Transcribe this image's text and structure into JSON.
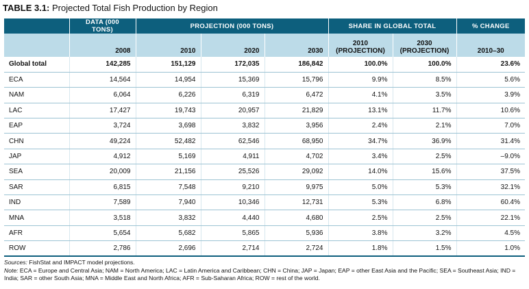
{
  "title": {
    "number": "TABLE 3.1:",
    "text": "Projected Total Fish Production by Region"
  },
  "header": {
    "group_data": "DATA (000 TONS)",
    "group_projection": "PROJECTION (000 TONS)",
    "group_share": "SHARE IN GLOBAL TOTAL",
    "group_change": "% CHANGE",
    "col_2008": "2008",
    "col_2010": "2010",
    "col_2020": "2020",
    "col_2030": "2030",
    "share_2010_year": "2010",
    "share_2010_sub": "(PROJECTION)",
    "share_2030_year": "2030",
    "share_2030_sub": "(PROJECTION)",
    "change_range": "2010–30"
  },
  "rows": [
    {
      "region": "Global total",
      "d2008": "142,285",
      "p2010": "151,129",
      "p2020": "172,035",
      "p2030": "186,842",
      "s2010": "100.0%",
      "s2030": "100.0%",
      "change": "23.6%"
    },
    {
      "region": "ECA",
      "d2008": "14,564",
      "p2010": "14,954",
      "p2020": "15,369",
      "p2030": "15,796",
      "s2010": "9.9%",
      "s2030": "8.5%",
      "change": "5.6%"
    },
    {
      "region": "NAM",
      "d2008": "6,064",
      "p2010": "6,226",
      "p2020": "6,319",
      "p2030": "6,472",
      "s2010": "4.1%",
      "s2030": "3.5%",
      "change": "3.9%"
    },
    {
      "region": "LAC",
      "d2008": "17,427",
      "p2010": "19,743",
      "p2020": "20,957",
      "p2030": "21,829",
      "s2010": "13.1%",
      "s2030": "11.7%",
      "change": "10.6%"
    },
    {
      "region": "EAP",
      "d2008": "3,724",
      "p2010": "3,698",
      "p2020": "3,832",
      "p2030": "3,956",
      "s2010": "2.4%",
      "s2030": "2.1%",
      "change": "7.0%"
    },
    {
      "region": "CHN",
      "d2008": "49,224",
      "p2010": "52,482",
      "p2020": "62,546",
      "p2030": "68,950",
      "s2010": "34.7%",
      "s2030": "36.9%",
      "change": "31.4%"
    },
    {
      "region": "JAP",
      "d2008": "4,912",
      "p2010": "5,169",
      "p2020": "4,911",
      "p2030": "4,702",
      "s2010": "3.4%",
      "s2030": "2.5%",
      "change": "–9.0%"
    },
    {
      "region": "SEA",
      "d2008": "20,009",
      "p2010": "21,156",
      "p2020": "25,526",
      "p2030": "29,092",
      "s2010": "14.0%",
      "s2030": "15.6%",
      "change": "37.5%"
    },
    {
      "region": "SAR",
      "d2008": "6,815",
      "p2010": "7,548",
      "p2020": "9,210",
      "p2030": "9,975",
      "s2010": "5.0%",
      "s2030": "5.3%",
      "change": "32.1%"
    },
    {
      "region": "IND",
      "d2008": "7,589",
      "p2010": "7,940",
      "p2020": "10,346",
      "p2030": "12,731",
      "s2010": "5.3%",
      "s2030": "6.8%",
      "change": "60.4%"
    },
    {
      "region": "MNA",
      "d2008": "3,518",
      "p2010": "3,832",
      "p2020": "4,440",
      "p2030": "4,680",
      "s2010": "2.5%",
      "s2030": "2.5%",
      "change": "22.1%"
    },
    {
      "region": "AFR",
      "d2008": "5,654",
      "p2010": "5,682",
      "p2020": "5,865",
      "p2030": "5,936",
      "s2010": "3.8%",
      "s2030": "3.2%",
      "change": "4.5%"
    },
    {
      "region": "ROW",
      "d2008": "2,786",
      "p2010": "2,696",
      "p2020": "2,714",
      "p2030": "2,724",
      "s2010": "1.8%",
      "s2030": "1.5%",
      "change": "1.0%"
    }
  ],
  "notes": {
    "sources_label": "Sources:",
    "sources_text": " FishStat and IMPACT model projections.",
    "note_label": "Note:",
    "note_text": " ECA = Europe and Central Asia; NAM = North America; LAC = Latin America and Caribbean; CHN = China; JAP = Japan; EAP = other East Asia and the Pacific; SEA = Southeast Asia; IND = India; SAR = other South Asia; MNA = Middle East and North Africa; AFR = Sub-Saharan Africa; ROW = rest of the world."
  }
}
